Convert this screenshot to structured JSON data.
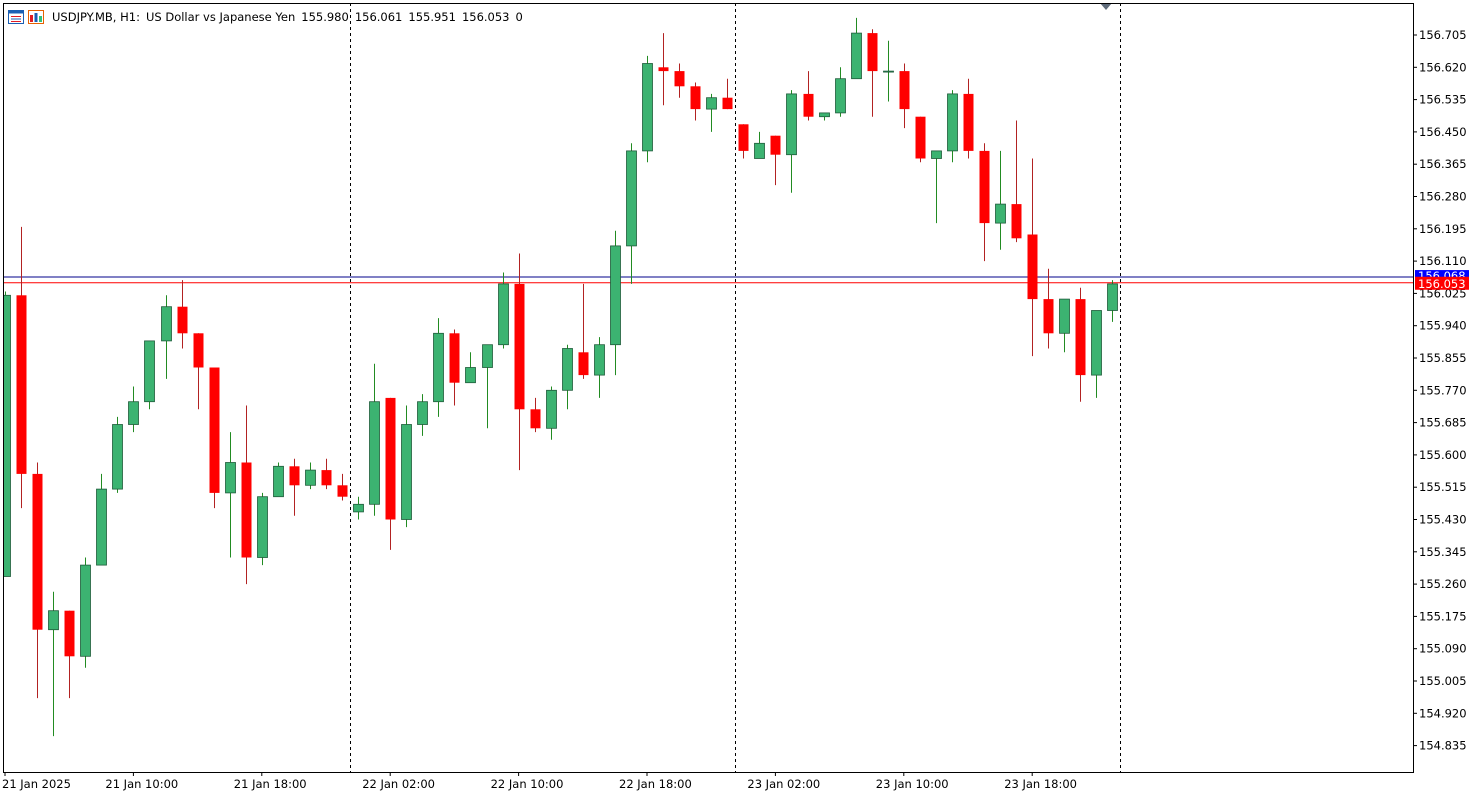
{
  "header": {
    "symbol": "USDJPY.MB, H1:",
    "description": "US Dollar vs Japanese Yen",
    "open": "155.980",
    "high": "156.061",
    "low": "155.951",
    "close": "156.053",
    "volume": "0"
  },
  "icons": [
    "chart-menu-icon",
    "chart-window-icon"
  ],
  "colors": {
    "background": "#ffffff",
    "bull_fill": "#3cb371",
    "bear_fill": "#ff0000",
    "wick_bull": "#228b22",
    "wick_bear": "#b22222",
    "bid_line": "#ff0000",
    "ask_line": "#00008b",
    "ask_badge": "#0000ff",
    "bid_badge": "#ff0000",
    "axis_text": "#000000",
    "separator": "#000000"
  },
  "chart_data": {
    "type": "candlestick",
    "symbol": "USDJPY.MB",
    "timeframe": "H1",
    "price_ticks": [
      "156.705",
      "156.620",
      "156.535",
      "156.450",
      "156.365",
      "156.280",
      "156.195",
      "156.110",
      "156.025",
      "155.940",
      "155.855",
      "155.770",
      "155.685",
      "155.600",
      "155.515",
      "155.430",
      "155.345",
      "155.260",
      "155.175",
      "155.090",
      "155.005",
      "154.920",
      "154.835"
    ],
    "y_range": [
      154.79,
      156.79
    ],
    "time_labels": [
      {
        "label": "21 Jan 2025",
        "bar": 0
      },
      {
        "label": "21 Jan 10:00",
        "bar": 8
      },
      {
        "label": "21 Jan 18:00",
        "bar": 16
      },
      {
        "label": "22 Jan 02:00",
        "bar": 24
      },
      {
        "label": "22 Jan 10:00",
        "bar": 32
      },
      {
        "label": "22 Jan 18:00",
        "bar": 40
      },
      {
        "label": "23 Jan 02:00",
        "bar": 48
      },
      {
        "label": "23 Jan 10:00",
        "bar": 56
      },
      {
        "label": "23 Jan 18:00",
        "bar": 64
      }
    ],
    "day_separators_bar": [
      21.5,
      45.5,
      69.5
    ],
    "current_bid": "156.053",
    "current_ask": "156.068",
    "candles": [
      [
        155.28,
        156.02,
        155.28,
        156.03
      ],
      [
        156.02,
        155.55,
        155.46,
        156.2
      ],
      [
        155.55,
        155.14,
        154.96,
        155.58
      ],
      [
        155.14,
        155.19,
        154.86,
        155.24
      ],
      [
        155.19,
        155.07,
        154.96,
        155.19
      ],
      [
        155.07,
        155.31,
        155.04,
        155.33
      ],
      [
        155.31,
        155.51,
        155.31,
        155.55
      ],
      [
        155.51,
        155.68,
        155.5,
        155.7
      ],
      [
        155.68,
        155.74,
        155.66,
        155.78
      ],
      [
        155.74,
        155.9,
        155.72,
        155.9
      ],
      [
        155.9,
        155.99,
        155.8,
        156.02
      ],
      [
        155.99,
        155.92,
        155.88,
        156.06
      ],
      [
        155.92,
        155.83,
        155.72,
        155.92
      ],
      [
        155.83,
        155.5,
        155.46,
        155.83
      ],
      [
        155.5,
        155.58,
        155.33,
        155.66
      ],
      [
        155.58,
        155.33,
        155.26,
        155.73
      ],
      [
        155.33,
        155.49,
        155.31,
        155.5
      ],
      [
        155.49,
        155.57,
        155.49,
        155.58
      ],
      [
        155.57,
        155.52,
        155.44,
        155.59
      ],
      [
        155.52,
        155.56,
        155.51,
        155.58
      ],
      [
        155.56,
        155.52,
        155.51,
        155.59
      ],
      [
        155.52,
        155.49,
        155.48,
        155.55
      ],
      [
        155.45,
        155.47,
        155.43,
        155.49
      ],
      [
        155.47,
        155.74,
        155.44,
        155.84
      ],
      [
        155.75,
        155.43,
        155.35,
        155.75
      ],
      [
        155.43,
        155.68,
        155.41,
        155.73
      ],
      [
        155.68,
        155.74,
        155.65,
        155.76
      ],
      [
        155.74,
        155.92,
        155.7,
        155.96
      ],
      [
        155.92,
        155.79,
        155.73,
        155.93
      ],
      [
        155.79,
        155.83,
        155.79,
        155.87
      ],
      [
        155.83,
        155.89,
        155.67,
        155.89
      ],
      [
        155.89,
        156.05,
        155.88,
        156.08
      ],
      [
        156.05,
        155.72,
        155.56,
        156.13
      ],
      [
        155.72,
        155.67,
        155.66,
        155.75
      ],
      [
        155.67,
        155.77,
        155.64,
        155.78
      ],
      [
        155.77,
        155.88,
        155.72,
        155.89
      ],
      [
        155.87,
        155.81,
        155.8,
        156.05
      ],
      [
        155.81,
        155.89,
        155.75,
        155.91
      ],
      [
        155.89,
        156.15,
        155.81,
        156.19
      ],
      [
        156.15,
        156.4,
        156.05,
        156.42
      ],
      [
        156.4,
        156.63,
        156.37,
        156.65
      ],
      [
        156.62,
        156.61,
        156.52,
        156.71
      ],
      [
        156.61,
        156.57,
        156.54,
        156.63
      ],
      [
        156.57,
        156.51,
        156.48,
        156.58
      ],
      [
        156.51,
        156.54,
        156.45,
        156.55
      ],
      [
        156.54,
        156.51,
        156.51,
        156.59
      ],
      [
        156.47,
        156.4,
        156.38,
        156.47
      ],
      [
        156.38,
        156.42,
        156.38,
        156.45
      ],
      [
        156.44,
        156.39,
        156.31,
        156.44
      ],
      [
        156.39,
        156.55,
        156.29,
        156.56
      ],
      [
        156.55,
        156.49,
        156.48,
        156.61
      ],
      [
        156.49,
        156.5,
        156.48,
        156.5
      ],
      [
        156.5,
        156.59,
        156.49,
        156.62
      ],
      [
        156.59,
        156.71,
        156.59,
        156.75
      ],
      [
        156.71,
        156.61,
        156.49,
        156.72
      ],
      [
        156.61,
        156.61,
        156.53,
        156.69
      ],
      [
        156.61,
        156.51,
        156.46,
        156.63
      ],
      [
        156.49,
        156.38,
        156.37,
        156.49
      ],
      [
        156.38,
        156.4,
        156.21,
        156.4
      ],
      [
        156.4,
        156.55,
        156.37,
        156.56
      ],
      [
        156.55,
        156.4,
        156.38,
        156.59
      ],
      [
        156.4,
        156.21,
        156.11,
        156.42
      ],
      [
        156.21,
        156.26,
        156.14,
        156.4
      ],
      [
        156.26,
        156.17,
        156.16,
        156.48
      ],
      [
        156.18,
        156.01,
        155.86,
        156.38
      ],
      [
        156.01,
        155.92,
        155.88,
        156.09
      ],
      [
        155.92,
        156.01,
        155.87,
        156.01
      ],
      [
        156.01,
        155.81,
        155.74,
        156.04
      ],
      [
        155.81,
        155.98,
        155.75,
        155.98
      ],
      [
        155.98,
        156.05,
        155.95,
        156.06
      ]
    ]
  }
}
